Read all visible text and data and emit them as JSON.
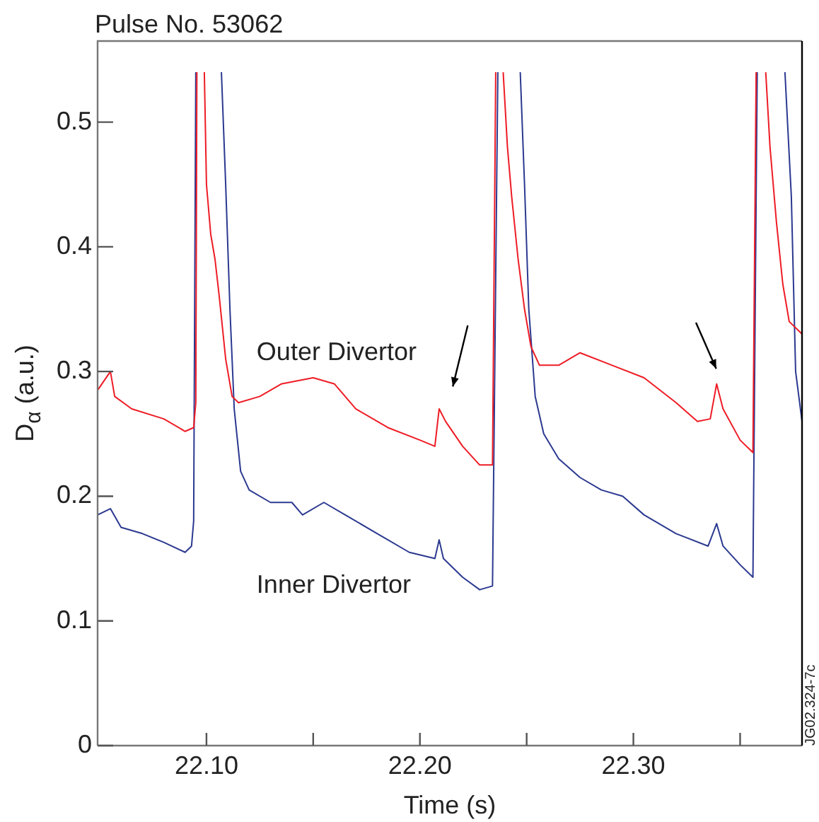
{
  "chart_data": {
    "type": "line",
    "title": "Pulse No. 53062",
    "xlabel": "Time (s)",
    "ylabel": "D$_{α}$ (a.u.)",
    "annotations": [
      "JG02.324-7c"
    ],
    "xlim": [
      22.049,
      22.379
    ],
    "xticks": [
      {
        "value": 22.1,
        "label": "22.10"
      },
      {
        "value": 22.15,
        "label": null
      },
      {
        "value": 22.2,
        "label": "22.20"
      },
      {
        "value": 22.25,
        "label": null
      },
      {
        "value": 22.3,
        "label": "22.30"
      },
      {
        "value": 22.35,
        "label": null
      }
    ],
    "ylim": [
      0,
      0.565
    ],
    "yticks": [
      0,
      0.1,
      0.2,
      0.3,
      0.4,
      0.5
    ],
    "marker": "none",
    "line_style": "solid",
    "series": [
      {
        "name": "Outer Divertor",
        "color": "#ee1c25",
        "x": [
          22.049,
          22.055,
          22.057,
          22.065,
          22.08,
          22.09,
          22.094,
          22.095,
          22.0955,
          22.097,
          22.099,
          22.1,
          22.102,
          22.104,
          22.106,
          22.109,
          22.112,
          22.115,
          22.125,
          22.135,
          22.15,
          22.16,
          22.17,
          22.185,
          22.2,
          22.207,
          22.209,
          22.212,
          22.22,
          22.228,
          22.234,
          22.2355,
          22.237,
          22.239,
          22.241,
          22.243,
          22.246,
          22.249,
          22.252,
          22.256,
          22.265,
          22.275,
          22.29,
          22.305,
          22.32,
          22.33,
          22.336,
          22.339,
          22.342,
          22.35,
          22.356,
          22.3575,
          22.36,
          22.362,
          22.364,
          22.367,
          22.37,
          22.373,
          22.379
        ],
        "values": [
          0.285,
          0.3,
          0.28,
          0.27,
          0.262,
          0.252,
          0.255,
          0.275,
          0.54,
          null,
          0.54,
          0.45,
          0.41,
          0.39,
          0.36,
          0.31,
          0.28,
          0.275,
          0.28,
          0.29,
          0.295,
          0.29,
          0.27,
          0.255,
          0.245,
          0.24,
          0.27,
          0.26,
          0.24,
          0.225,
          0.225,
          0.54,
          null,
          0.54,
          0.48,
          0.44,
          0.39,
          0.35,
          0.32,
          0.305,
          0.305,
          0.315,
          0.305,
          0.295,
          0.275,
          0.26,
          0.262,
          0.29,
          0.27,
          0.245,
          0.235,
          0.54,
          null,
          0.54,
          0.48,
          0.42,
          0.37,
          0.34,
          0.33
        ]
      },
      {
        "name": "Inner Divertor",
        "color": "#2b3990",
        "x": [
          22.049,
          22.055,
          22.06,
          22.07,
          22.08,
          22.09,
          22.093,
          22.094,
          22.095,
          22.1,
          22.107,
          22.109,
          22.111,
          22.113,
          22.116,
          22.12,
          22.13,
          22.14,
          22.145,
          22.155,
          22.165,
          22.18,
          22.195,
          22.207,
          22.209,
          22.211,
          22.22,
          22.228,
          22.234,
          22.2365,
          22.24,
          22.247,
          22.249,
          22.251,
          22.254,
          22.258,
          22.265,
          22.275,
          22.285,
          22.295,
          22.305,
          22.32,
          22.335,
          22.339,
          22.342,
          22.35,
          22.356,
          22.358,
          22.365,
          22.371,
          22.374,
          22.376,
          22.379
        ],
        "values": [
          0.185,
          0.19,
          0.175,
          0.17,
          0.163,
          0.155,
          0.16,
          0.18,
          0.54,
          null,
          0.54,
          0.45,
          0.35,
          0.27,
          0.22,
          0.205,
          0.195,
          0.195,
          0.185,
          0.195,
          0.185,
          0.17,
          0.155,
          0.15,
          0.165,
          0.15,
          0.135,
          0.125,
          0.128,
          0.54,
          null,
          0.54,
          0.45,
          0.35,
          0.28,
          0.25,
          0.23,
          0.215,
          0.205,
          0.2,
          0.185,
          0.17,
          0.16,
          0.178,
          0.16,
          0.145,
          0.135,
          0.54,
          null,
          0.54,
          0.44,
          0.3,
          0.26
        ]
      }
    ]
  }
}
